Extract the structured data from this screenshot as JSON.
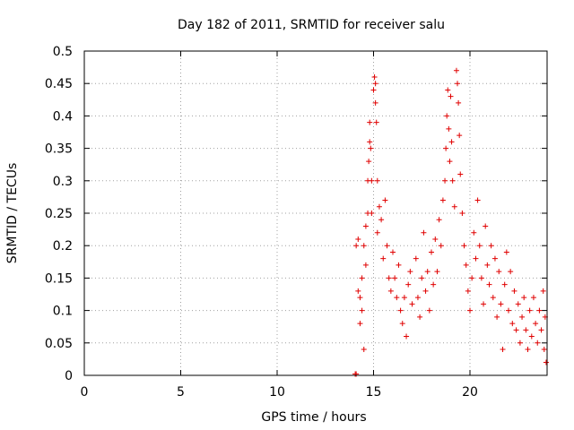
{
  "chart_data": {
    "type": "scatter",
    "title": "Day 182 of 2011, SRMTID for receiver salu",
    "xlabel": "GPS time / hours",
    "ylabel": "SRMTID / TECUs",
    "xlim": [
      0,
      24
    ],
    "ylim": [
      0,
      0.5
    ],
    "xticks": [
      0,
      5,
      10,
      15,
      20
    ],
    "xtick_labels": [
      "0",
      "5",
      "10",
      "15",
      "20"
    ],
    "yticks": [
      0,
      0.05,
      0.1,
      0.15,
      0.2,
      0.25,
      0.3,
      0.35,
      0.4,
      0.45,
      0.5
    ],
    "ytick_labels": [
      "0",
      "0.05",
      "0.1",
      "0.15",
      "0.2",
      "0.25",
      "0.3",
      "0.35",
      "0.4",
      "0.45",
      "0.5"
    ],
    "grid": true,
    "marker": "plus",
    "marker_color": "#e00000",
    "series": [
      {
        "name": "SRMTID",
        "points": [
          [
            14.05,
            0.002
          ],
          [
            14.1,
            0.002
          ],
          [
            14.1,
            0.2
          ],
          [
            14.2,
            0.21
          ],
          [
            14.2,
            0.13
          ],
          [
            14.3,
            0.08
          ],
          [
            14.3,
            0.12
          ],
          [
            14.4,
            0.15
          ],
          [
            14.4,
            0.1
          ],
          [
            14.5,
            0.04
          ],
          [
            14.5,
            0.2
          ],
          [
            14.6,
            0.23
          ],
          [
            14.6,
            0.17
          ],
          [
            14.7,
            0.25
          ],
          [
            14.7,
            0.3
          ],
          [
            14.75,
            0.33
          ],
          [
            14.8,
            0.36
          ],
          [
            14.8,
            0.39
          ],
          [
            14.85,
            0.35
          ],
          [
            14.9,
            0.3
          ],
          [
            14.9,
            0.25
          ],
          [
            15.0,
            0.44
          ],
          [
            15.05,
            0.46
          ],
          [
            15.1,
            0.45
          ],
          [
            15.1,
            0.42
          ],
          [
            15.15,
            0.39
          ],
          [
            15.2,
            0.3
          ],
          [
            15.2,
            0.22
          ],
          [
            15.3,
            0.26
          ],
          [
            15.4,
            0.24
          ],
          [
            15.5,
            0.18
          ],
          [
            15.6,
            0.27
          ],
          [
            15.7,
            0.2
          ],
          [
            15.8,
            0.15
          ],
          [
            15.9,
            0.13
          ],
          [
            16.0,
            0.19
          ],
          [
            16.1,
            0.15
          ],
          [
            16.2,
            0.12
          ],
          [
            16.3,
            0.17
          ],
          [
            16.4,
            0.1
          ],
          [
            16.5,
            0.08
          ],
          [
            16.6,
            0.12
          ],
          [
            16.7,
            0.06
          ],
          [
            16.8,
            0.14
          ],
          [
            16.9,
            0.16
          ],
          [
            17.0,
            0.11
          ],
          [
            17.2,
            0.18
          ],
          [
            17.3,
            0.12
          ],
          [
            17.4,
            0.09
          ],
          [
            17.5,
            0.15
          ],
          [
            17.6,
            0.22
          ],
          [
            17.7,
            0.13
          ],
          [
            17.8,
            0.16
          ],
          [
            17.9,
            0.1
          ],
          [
            18.0,
            0.19
          ],
          [
            18.1,
            0.14
          ],
          [
            18.2,
            0.21
          ],
          [
            18.3,
            0.16
          ],
          [
            18.4,
            0.24
          ],
          [
            18.5,
            0.2
          ],
          [
            18.6,
            0.27
          ],
          [
            18.7,
            0.3
          ],
          [
            18.75,
            0.35
          ],
          [
            18.8,
            0.4
          ],
          [
            18.85,
            0.44
          ],
          [
            18.9,
            0.38
          ],
          [
            18.95,
            0.33
          ],
          [
            19.0,
            0.43
          ],
          [
            19.05,
            0.36
          ],
          [
            19.1,
            0.3
          ],
          [
            19.2,
            0.26
          ],
          [
            19.3,
            0.47
          ],
          [
            19.35,
            0.45
          ],
          [
            19.4,
            0.42
          ],
          [
            19.45,
            0.37
          ],
          [
            19.5,
            0.31
          ],
          [
            19.6,
            0.25
          ],
          [
            19.7,
            0.2
          ],
          [
            19.8,
            0.17
          ],
          [
            19.9,
            0.13
          ],
          [
            20.0,
            0.1
          ],
          [
            20.1,
            0.15
          ],
          [
            20.2,
            0.22
          ],
          [
            20.3,
            0.18
          ],
          [
            20.4,
            0.27
          ],
          [
            20.5,
            0.2
          ],
          [
            20.6,
            0.15
          ],
          [
            20.7,
            0.11
          ],
          [
            20.8,
            0.23
          ],
          [
            20.9,
            0.17
          ],
          [
            21.0,
            0.14
          ],
          [
            21.1,
            0.2
          ],
          [
            21.2,
            0.12
          ],
          [
            21.3,
            0.18
          ],
          [
            21.4,
            0.09
          ],
          [
            21.5,
            0.16
          ],
          [
            21.6,
            0.11
          ],
          [
            21.7,
            0.04
          ],
          [
            21.8,
            0.14
          ],
          [
            21.9,
            0.19
          ],
          [
            22.0,
            0.1
          ],
          [
            22.1,
            0.16
          ],
          [
            22.2,
            0.08
          ],
          [
            22.3,
            0.13
          ],
          [
            22.4,
            0.07
          ],
          [
            22.5,
            0.11
          ],
          [
            22.6,
            0.05
          ],
          [
            22.7,
            0.09
          ],
          [
            22.8,
            0.12
          ],
          [
            22.9,
            0.07
          ],
          [
            23.0,
            0.04
          ],
          [
            23.1,
            0.1
          ],
          [
            23.2,
            0.06
          ],
          [
            23.3,
            0.12
          ],
          [
            23.4,
            0.08
          ],
          [
            23.5,
            0.05
          ],
          [
            23.6,
            0.1
          ],
          [
            23.7,
            0.07
          ],
          [
            23.8,
            0.13
          ],
          [
            23.85,
            0.04
          ],
          [
            23.9,
            0.09
          ],
          [
            23.95,
            0.02
          ]
        ]
      }
    ]
  }
}
